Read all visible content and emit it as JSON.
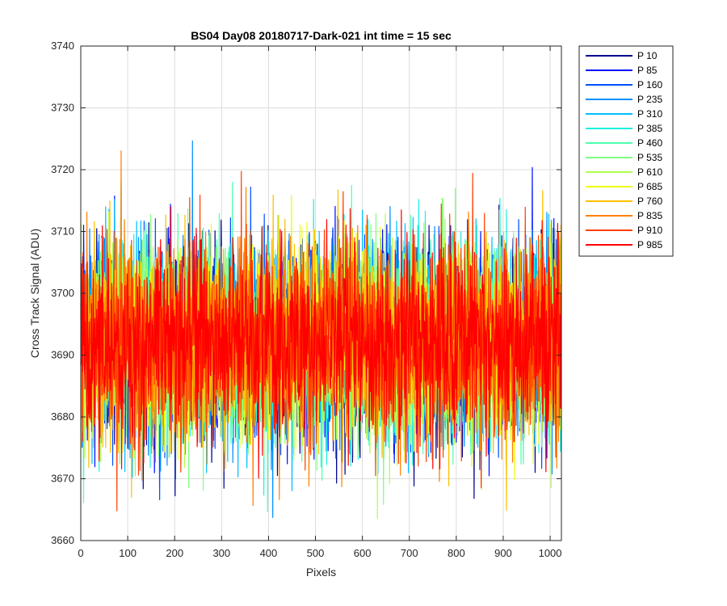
{
  "chart_data": {
    "type": "line",
    "title": "BS04 Day08 20180717-Dark-021 int time = 15 sec",
    "xlabel": "Pixels",
    "ylabel": "Cross Track Signal (ADU)",
    "xlim": [
      0,
      1024
    ],
    "ylim": [
      3660,
      3740
    ],
    "xticks": [
      0,
      100,
      200,
      300,
      400,
      500,
      600,
      700,
      800,
      900,
      1000
    ],
    "yticks": [
      3660,
      3670,
      3680,
      3690,
      3700,
      3710,
      3720,
      3730,
      3740
    ],
    "grid": true,
    "legend_position": "outside-top-right",
    "noise_model": {
      "mean": 3692,
      "std": 8,
      "n_points": 1024
    },
    "series": [
      {
        "name": "P 10",
        "color": "#00008f"
      },
      {
        "name": "P 85",
        "color": "#0010ff"
      },
      {
        "name": "P 160",
        "color": "#0050ff"
      },
      {
        "name": "P 235",
        "color": "#0090ff"
      },
      {
        "name": "P 310",
        "color": "#00bfff"
      },
      {
        "name": "P 385",
        "color": "#20efdf"
      },
      {
        "name": "P 460",
        "color": "#50ffaf"
      },
      {
        "name": "P 535",
        "color": "#80ff80"
      },
      {
        "name": "P 610",
        "color": "#b0ff50"
      },
      {
        "name": "P 685",
        "color": "#efff10"
      },
      {
        "name": "P 760",
        "color": "#ffbf00"
      },
      {
        "name": "P 835",
        "color": "#ff8000"
      },
      {
        "name": "P 910",
        "color": "#ff4000"
      },
      {
        "name": "P 985",
        "color": "#ff0000"
      }
    ]
  }
}
